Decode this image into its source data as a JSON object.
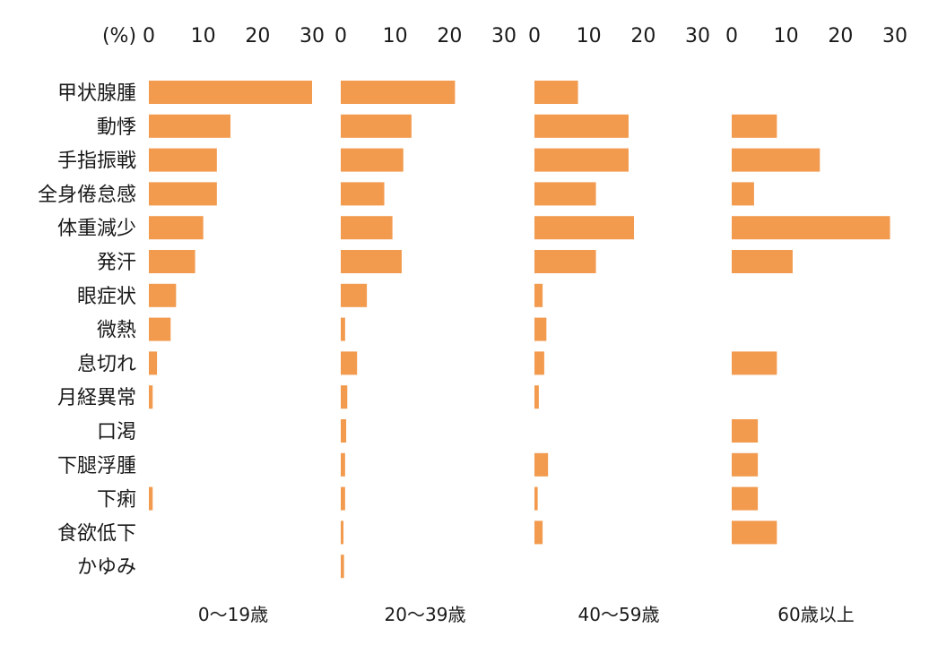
{
  "chart_data": {
    "type": "bar",
    "orientation": "horizontal",
    "unit_label": "(%)",
    "xlim": [
      0,
      30
    ],
    "x_ticks": [
      "0",
      "10",
      "20",
      "30"
    ],
    "bar_color": "#F29A4E",
    "categories": [
      "甲状腺腫",
      "動悸",
      "手指振戦",
      "全身倦怠感",
      "体重減少",
      "発汗",
      "眼症状",
      "微熱",
      "息切れ",
      "月経異常",
      "口渇",
      "下腿浮腫",
      "下痢",
      "食欲低下",
      "かゆみ"
    ],
    "series": [
      {
        "name": "0〜19歳",
        "values": [
          30,
          15,
          12.5,
          12.5,
          10,
          8.5,
          5,
          4,
          1.5,
          0.7,
          0,
          0,
          0.7,
          0,
          0
        ]
      },
      {
        "name": "20〜39歳",
        "values": [
          21,
          13,
          11.5,
          8,
          9.5,
          11.2,
          4.8,
          0.8,
          3,
          1.2,
          1,
          0.8,
          0.8,
          0.5,
          0.6
        ]
      },
      {
        "name": "40〜59歳",
        "values": [
          8,
          17.3,
          17.3,
          11.3,
          18.3,
          11.3,
          1.5,
          2.2,
          1.8,
          0.8,
          0,
          2.5,
          0.6,
          1.5,
          0
        ]
      },
      {
        "name": "60歳以上",
        "values": [
          0,
          8.3,
          16.2,
          4.1,
          29.1,
          11.2,
          0,
          0,
          8.3,
          0,
          4.8,
          4.8,
          4.8,
          8.3,
          0
        ]
      }
    ]
  }
}
